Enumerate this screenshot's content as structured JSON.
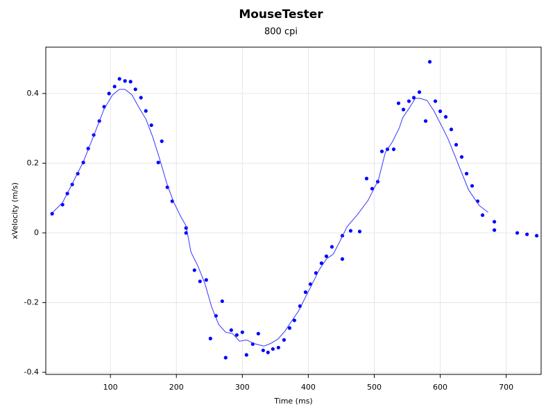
{
  "chart_data": {
    "type": "scatter",
    "title": "MouseTester",
    "subtitle": "800 cpi",
    "x_label": "Time (ms)",
    "y_label": "xVelocity (m/s)",
    "xlim": [
      2,
      753
    ],
    "ylim": [
      -0.406,
      0.533
    ],
    "xticks": [
      100,
      200,
      300,
      400,
      500,
      600,
      700
    ],
    "yticks": [
      -0.4,
      -0.2,
      0,
      0.2,
      0.4
    ],
    "grid": true,
    "series": [
      {
        "type": "scatter",
        "color": "#0000ff",
        "x": [
          11.6,
          27.4,
          34.7,
          42.1,
          50.5,
          58.9,
          66.3,
          74.7,
          83.2,
          90.5,
          97.9,
          106.3,
          113.7,
          122.1,
          130.5,
          137.9,
          146.3,
          153.7,
          162.1,
          172.6,
          177.9,
          186.3,
          193.7,
          214.7,
          214.7,
          227.4,
          235.8,
          245.3,
          251.6,
          260,
          269.5,
          274.7,
          283.2,
          291.6,
          300,
          306.3,
          315.8,
          324.2,
          331.6,
          338.9,
          346.3,
          354.7,
          363.2,
          371.6,
          378.9,
          387.4,
          395.8,
          403.2,
          411.6,
          420,
          427.4,
          435.8,
          451.6,
          451.6,
          464.2,
          477.9,
          488.4,
          496.8,
          505.3,
          511.6,
          520,
          529.5,
          536.8,
          544.2,
          552.6,
          560,
          568.4,
          577.9,
          584.2,
          592.6,
          600,
          608.4,
          616.8,
          624.2,
          632.6,
          640,
          648.4,
          656.8,
          664.2,
          682.1,
          682.1,
          716.8,
          731.6,
          746.3
        ],
        "values": [
          0.055,
          0.081,
          0.113,
          0.139,
          0.17,
          0.202,
          0.242,
          0.281,
          0.321,
          0.362,
          0.4,
          0.42,
          0.442,
          0.436,
          0.434,
          0.412,
          0.388,
          0.35,
          0.309,
          0.202,
          0.263,
          0.131,
          0.091,
          0.014,
          0.0,
          -0.107,
          -0.139,
          -0.135,
          -0.303,
          -0.238,
          -0.196,
          -0.358,
          -0.279,
          -0.293,
          -0.285,
          -0.35,
          -0.319,
          -0.289,
          -0.337,
          -0.343,
          -0.333,
          -0.329,
          -0.307,
          -0.273,
          -0.251,
          -0.21,
          -0.17,
          -0.147,
          -0.115,
          -0.087,
          -0.067,
          -0.04,
          -0.008,
          -0.075,
          0.006,
          0.004,
          0.156,
          0.127,
          0.147,
          0.234,
          0.24,
          0.24,
          0.372,
          0.354,
          0.378,
          0.388,
          0.404,
          0.321,
          0.491,
          0.378,
          0.349,
          0.333,
          0.297,
          0.253,
          0.218,
          0.17,
          0.135,
          0.091,
          0.051,
          0.032,
          0.008,
          0.0,
          -0.004,
          -0.008
        ]
      },
      {
        "type": "line",
        "color": "#3333ff",
        "x": [
          12.6,
          27.4,
          43.2,
          58.9,
          74.7,
          90.5,
          103.2,
          113.7,
          122.1,
          132.6,
          143.2,
          153.7,
          164.2,
          174.7,
          185.3,
          195.8,
          206.3,
          214.7,
          222.1,
          232.6,
          243.2,
          253.7,
          264.2,
          274.7,
          285.3,
          295.8,
          306.3,
          316.8,
          332.6,
          343.2,
          353.7,
          364.2,
          374.7,
          385.3,
          395.8,
          406.3,
          416.8,
          427.4,
          437.9,
          448.4,
          458.9,
          474.7,
          490.5,
          506.3,
          516.8,
          527.4,
          537.9,
          543.2,
          553.7,
          562.1,
          569.5,
          580,
          590.5,
          601.1,
          611.6,
          622.1,
          632.6,
          643.2,
          658.9,
          672.6
        ],
        "values": [
          0.059,
          0.087,
          0.145,
          0.204,
          0.279,
          0.356,
          0.396,
          0.412,
          0.412,
          0.396,
          0.36,
          0.327,
          0.275,
          0.212,
          0.143,
          0.089,
          0.048,
          0.02,
          -0.055,
          -0.095,
          -0.145,
          -0.214,
          -0.263,
          -0.285,
          -0.289,
          -0.311,
          -0.307,
          -0.317,
          -0.325,
          -0.317,
          -0.305,
          -0.283,
          -0.253,
          -0.224,
          -0.184,
          -0.145,
          -0.105,
          -0.075,
          -0.061,
          -0.022,
          0.018,
          0.053,
          0.093,
          0.152,
          0.231,
          0.261,
          0.301,
          0.331,
          0.36,
          0.386,
          0.386,
          0.38,
          0.35,
          0.311,
          0.271,
          0.222,
          0.172,
          0.123,
          0.079,
          0.059
        ]
      }
    ]
  }
}
